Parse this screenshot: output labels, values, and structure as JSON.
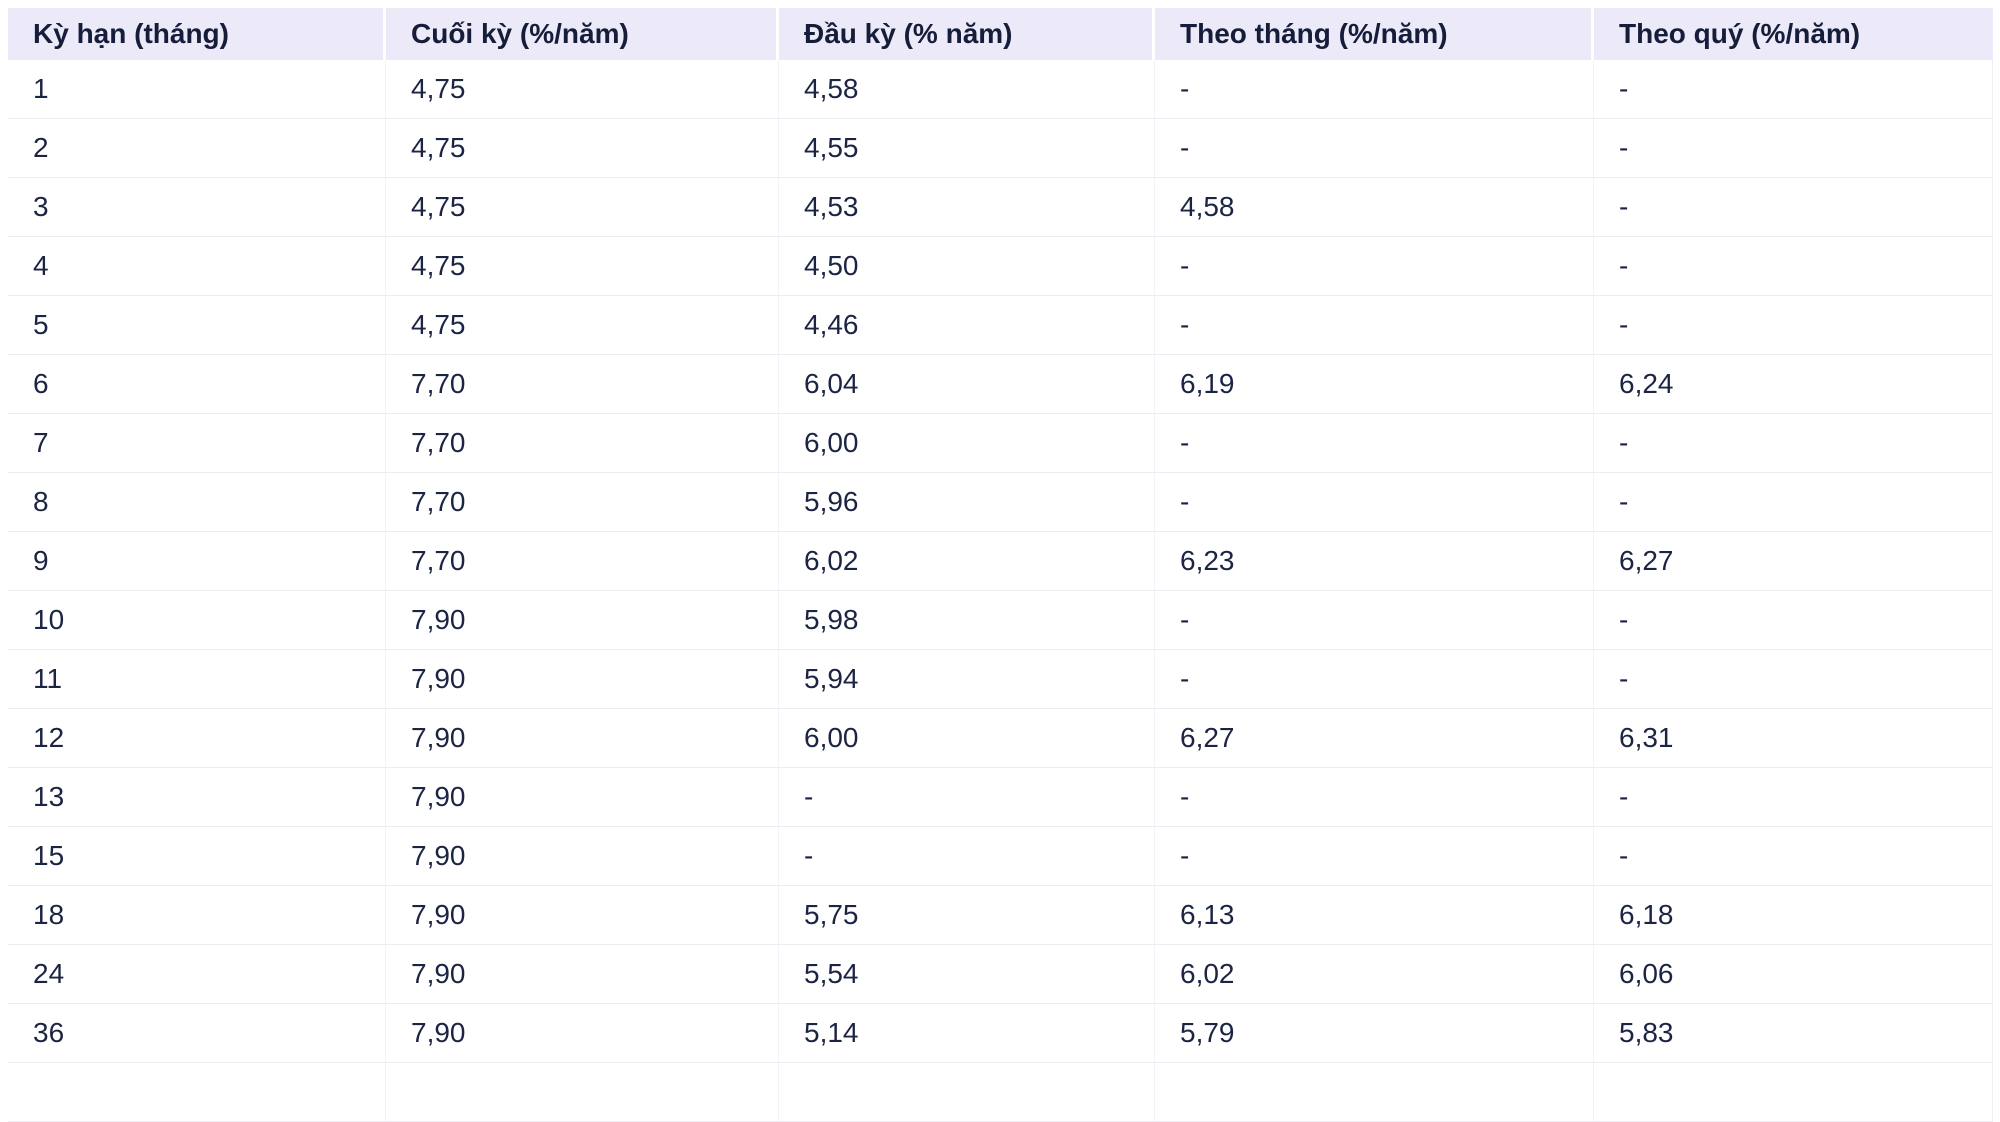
{
  "table": {
    "columns": [
      {
        "label": "Kỳ hạn (tháng)"
      },
      {
        "label": "Cuối kỳ (%/năm)"
      },
      {
        "label": "Đầu kỳ (% năm)"
      },
      {
        "label": "Theo tháng (%/năm)"
      },
      {
        "label": "Theo quý (%/năm)"
      }
    ],
    "rows": [
      [
        "1",
        "4,75",
        "4,58",
        "-",
        "-"
      ],
      [
        "2",
        "4,75",
        "4,55",
        "-",
        "-"
      ],
      [
        "3",
        "4,75",
        "4,53",
        "4,58",
        "-"
      ],
      [
        "4",
        "4,75",
        "4,50",
        "-",
        "-"
      ],
      [
        "5",
        "4,75",
        "4,46",
        "-",
        "-"
      ],
      [
        "6",
        "7,70",
        "6,04",
        "6,19",
        "6,24"
      ],
      [
        "7",
        "7,70",
        "6,00",
        "-",
        "-"
      ],
      [
        "8",
        "7,70",
        "5,96",
        "-",
        "-"
      ],
      [
        "9",
        "7,70",
        "6,02",
        "6,23",
        "6,27"
      ],
      [
        "10",
        "7,90",
        "5,98",
        "-",
        "-"
      ],
      [
        "11",
        "7,90",
        "5,94",
        "-",
        "-"
      ],
      [
        "12",
        "7,90",
        "6,00",
        "6,27",
        "6,31"
      ],
      [
        "13",
        "7,90",
        "-",
        "-",
        "-"
      ],
      [
        "15",
        "7,90",
        "-",
        "-",
        "-"
      ],
      [
        "18",
        "7,90",
        "5,75",
        "6,13",
        "6,18"
      ],
      [
        "24",
        "7,90",
        "5,54",
        "6,02",
        "6,06"
      ],
      [
        "36",
        "7,90",
        "5,14",
        "5,79",
        "5,83"
      ]
    ],
    "partial_row": [
      "",
      "",
      "",
      "",
      ""
    ]
  },
  "colors": {
    "header_background": "#ECE9F9",
    "header_text": "#161D3A",
    "body_text": "#1C2443",
    "row_border": "#ECECF2",
    "column_border": "#F2F1F7",
    "header_cell_gap": "#FFFFFF",
    "page_background": "#FFFFFF"
  }
}
